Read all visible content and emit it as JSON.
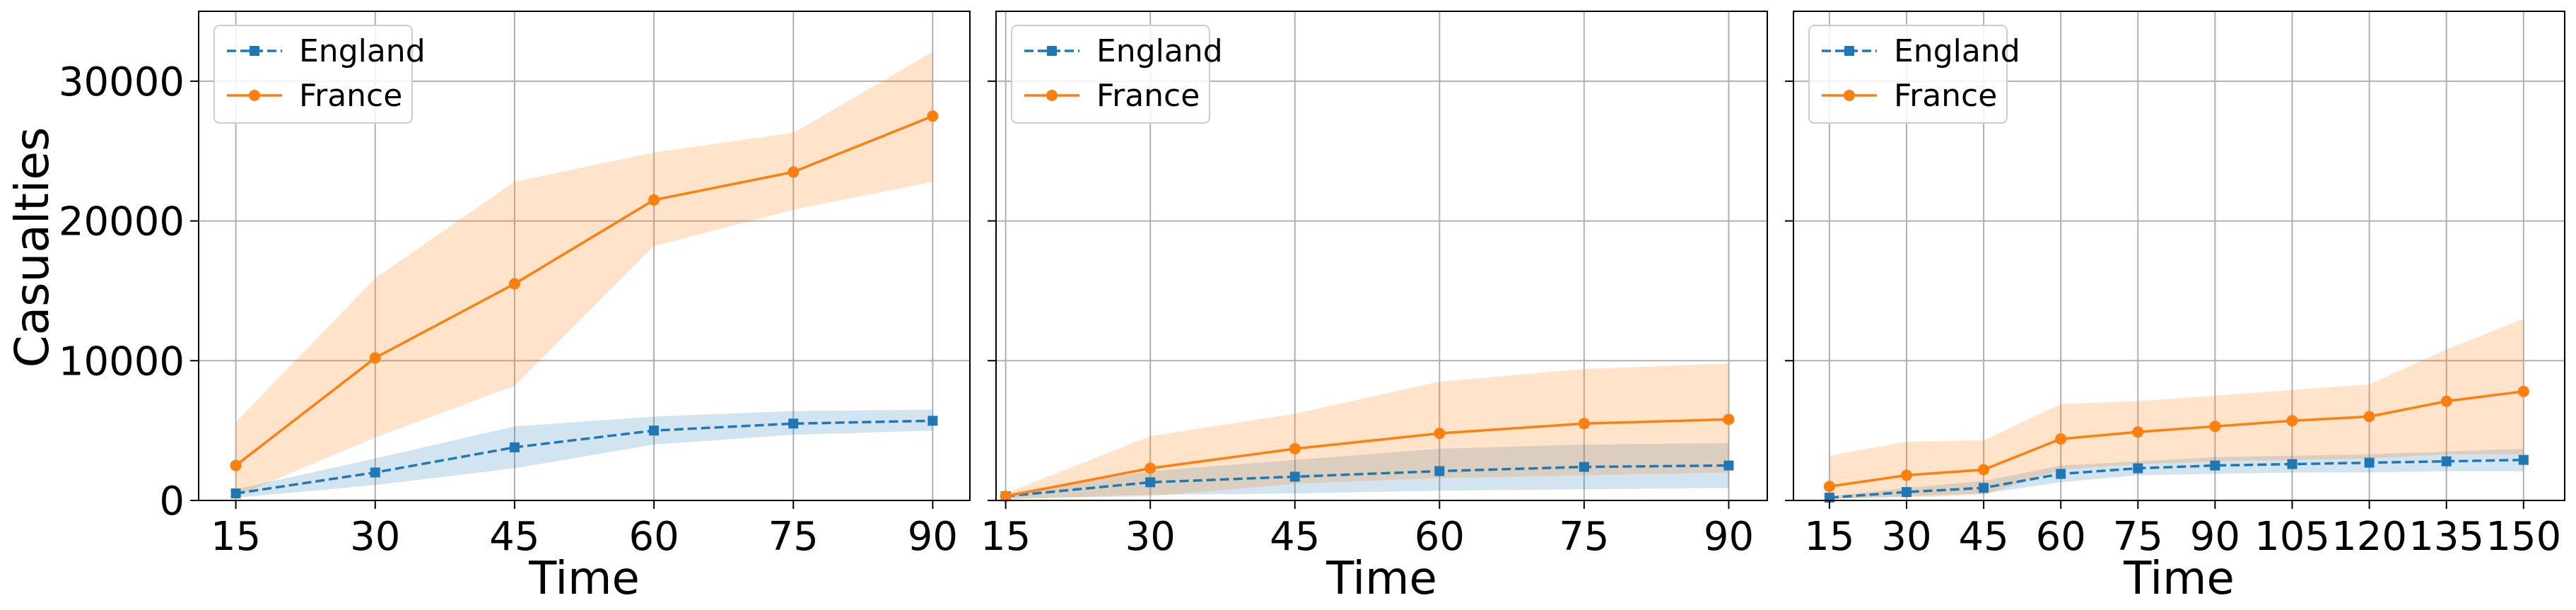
{
  "figure": {
    "ylabel": "Casualties"
  },
  "colors": {
    "england": "#1f77b4",
    "france": "#ff7f0e",
    "england_band": "#1f77b4",
    "france_band": "#ff7f0e",
    "grid": "#b0b0b0"
  },
  "chart_data": [
    {
      "type": "line",
      "xlabel": "Time",
      "ylabel": "Casualties",
      "xticks": [
        15,
        30,
        45,
        60,
        75,
        90
      ],
      "yticks": [
        0,
        10000,
        20000,
        30000
      ],
      "xlim": [
        11,
        94
      ],
      "ylim": [
        0,
        35000
      ],
      "grid": true,
      "legend": "top-left",
      "series": [
        {
          "name": "England",
          "style": "dashed-square",
          "x": [
            15,
            30,
            45,
            60,
            75,
            90
          ],
          "y": [
            500,
            2000,
            3800,
            5000,
            5500,
            5700
          ],
          "lower": [
            200,
            1100,
            2300,
            4000,
            4700,
            5000
          ],
          "upper": [
            800,
            3000,
            5300,
            6000,
            6400,
            6500
          ]
        },
        {
          "name": "France",
          "style": "solid-circle",
          "x": [
            15,
            30,
            45,
            60,
            75,
            90
          ],
          "y": [
            2500,
            10200,
            15500,
            21500,
            23500,
            27500
          ],
          "lower": [
            300,
            4500,
            8200,
            18200,
            20800,
            22800
          ],
          "upper": [
            5600,
            15900,
            22800,
            24900,
            26300,
            32100
          ]
        }
      ]
    },
    {
      "type": "line",
      "xlabel": "Time",
      "xticks": [
        15,
        30,
        45,
        60,
        75,
        90
      ],
      "yticks": [
        0,
        10000,
        20000,
        30000
      ],
      "xlim": [
        14,
        94
      ],
      "ylim": [
        0,
        35000
      ],
      "grid": true,
      "legend": "top-left",
      "series": [
        {
          "name": "England",
          "style": "dashed-square",
          "x": [
            15,
            30,
            45,
            60,
            75,
            90
          ],
          "y": [
            300,
            1300,
            1700,
            2100,
            2400,
            2500
          ],
          "lower": [
            100,
            400,
            500,
            700,
            800,
            900
          ],
          "upper": [
            500,
            2100,
            2900,
            3700,
            4000,
            4100
          ]
        },
        {
          "name": "France",
          "style": "solid-circle",
          "x": [
            15,
            30,
            45,
            60,
            75,
            90
          ],
          "y": [
            300,
            2300,
            3700,
            4800,
            5500,
            5800
          ],
          "lower": [
            100,
            300,
            1200,
            1600,
            1800,
            2000
          ],
          "upper": [
            500,
            4600,
            6200,
            8500,
            9400,
            9800
          ]
        }
      ]
    },
    {
      "type": "line",
      "xlabel": "Time",
      "xticks": [
        15,
        30,
        45,
        60,
        75,
        90,
        105,
        120,
        135,
        150
      ],
      "yticks": [
        0,
        10000,
        20000,
        30000
      ],
      "xlim": [
        8,
        158
      ],
      "ylim": [
        0,
        35000
      ],
      "grid": true,
      "legend": "top-left",
      "series": [
        {
          "name": "England",
          "style": "dashed-square",
          "x": [
            15,
            30,
            45,
            60,
            75,
            90,
            105,
            120,
            135,
            150
          ],
          "y": [
            200,
            600,
            900,
            1900,
            2300,
            2500,
            2600,
            2700,
            2800,
            2900
          ],
          "lower": [
            100,
            300,
            500,
            1300,
            1800,
            1900,
            2000,
            2000,
            2100,
            2100
          ],
          "upper": [
            300,
            900,
            1400,
            2500,
            2800,
            3100,
            3200,
            3300,
            3500,
            3700
          ]
        },
        {
          "name": "France",
          "style": "solid-circle",
          "x": [
            15,
            30,
            45,
            60,
            75,
            90,
            105,
            120,
            135,
            150
          ],
          "y": [
            1000,
            1800,
            2200,
            4400,
            4900,
            5300,
            5700,
            6000,
            7100,
            7800
          ],
          "lower": [
            100,
            200,
            400,
            2200,
            2600,
            2800,
            2900,
            3000,
            3300,
            3300
          ],
          "upper": [
            3200,
            4200,
            4300,
            6900,
            7100,
            7500,
            7900,
            8300,
            10800,
            13000
          ]
        }
      ]
    }
  ]
}
